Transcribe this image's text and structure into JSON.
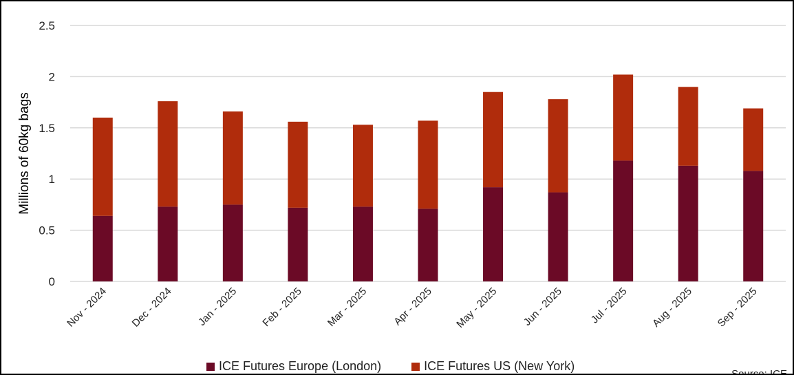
{
  "chart_data": {
    "type": "bar",
    "stacked": true,
    "title": "",
    "xlabel": "",
    "ylabel": "Millions of 60kg bags",
    "ylim": [
      0,
      2.5
    ],
    "yticks": [
      "0",
      "0.5",
      "1",
      "1.5",
      "2",
      "2.5"
    ],
    "ytick_values": [
      0,
      0.5,
      1,
      1.5,
      2,
      2.5
    ],
    "grid": true,
    "legend_position": "bottom",
    "categories": [
      "Nov - 2024",
      "Dec - 2024",
      "Jan - 2025",
      "Feb - 2025",
      "Mar - 2025",
      "Apr - 2025",
      "May - 2025",
      "Jun - 2025",
      "Jul - 2025",
      "Aug - 2025",
      "Sep - 2025"
    ],
    "series": [
      {
        "name": "ICE Futures Europe (London)",
        "color": "#6b0a26",
        "values": [
          0.64,
          0.73,
          0.75,
          0.72,
          0.73,
          0.71,
          0.92,
          0.87,
          1.18,
          1.13,
          1.08
        ]
      },
      {
        "name": "ICE Futures US (New York)",
        "color": "#b02c0c",
        "values": [
          0.96,
          1.03,
          0.91,
          0.84,
          0.8,
          0.86,
          0.93,
          0.91,
          0.84,
          0.77,
          0.61
        ]
      }
    ],
    "source": "Source: ICE"
  }
}
